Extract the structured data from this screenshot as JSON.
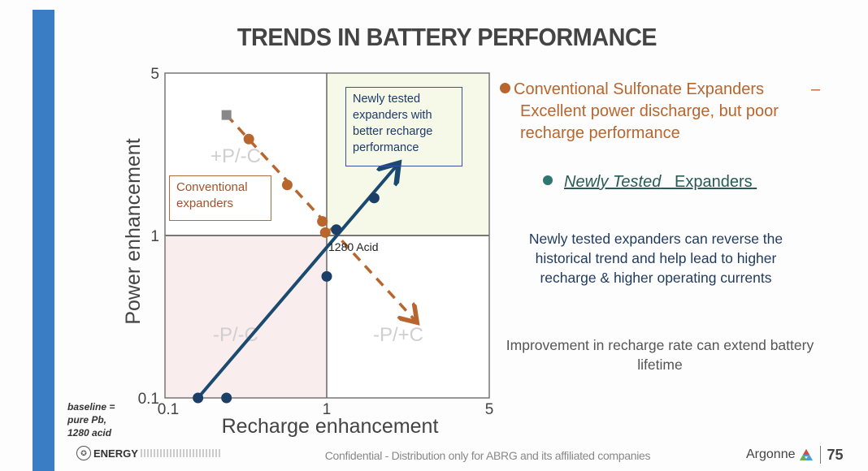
{
  "slide": {
    "title": "TRENDS IN BATTERY PERFORMANCE",
    "accent_color": "#3a7dc4",
    "footer": "Confidential  - Distribution only for ABRG and its affiliated companies",
    "logos": {
      "energy": "ENERGY",
      "argonne": "Argonne",
      "argonne_years": "75"
    }
  },
  "baseline_note": {
    "line1": "baseline =",
    "line2": "pure  Pb,",
    "line3": "1280 acid"
  },
  "legend_text": {
    "conventional": {
      "label": "Conventional Sulfonate Expanders",
      "dash": "–",
      "description": "Excellent power discharge, but poor recharge performance",
      "color": "#b8662e"
    },
    "newly_tested": {
      "label_italic": "Newly Tested",
      "label_rest": "Expanders",
      "color": "#2f7570"
    },
    "desc1": "Newly tested expanders can reverse the historical trend and help lead to higher recharge & higher operating currents",
    "desc2": "Improvement in recharge rate can extend battery lifetime"
  },
  "chart_data": {
    "type": "scatter",
    "title": "",
    "xlabel": "Recharge enhancement",
    "ylabel": "Power enhancement",
    "xscale": "log",
    "yscale": "log",
    "xlim": [
      0.1,
      5
    ],
    "ylim": [
      0.1,
      5
    ],
    "xticks": [
      "0.1",
      "1",
      "5"
    ],
    "yticks": [
      "0.1",
      "1",
      "5"
    ],
    "grid": false,
    "reference_lines": {
      "x": 1,
      "y": 1
    },
    "quadrants": [
      {
        "label": "+P/-C",
        "position": "top-left",
        "fill": "#ffffff"
      },
      {
        "label": "",
        "position": "top-right",
        "fill": "#f6f9e8"
      },
      {
        "label": "-P/-C",
        "position": "bottom-left",
        "fill": "#f9eded"
      },
      {
        "label": "-P/+C",
        "position": "bottom-right",
        "fill": "#ffffff"
      }
    ],
    "annotations": [
      {
        "text": "Newly tested expanders with better recharge performance",
        "type": "box"
      },
      {
        "text": "Conventional expanders",
        "type": "box"
      },
      {
        "text": "1280 Acid",
        "x": 1,
        "y": 1
      }
    ],
    "series": [
      {
        "name": "Conventional expanders",
        "color": "#b8662e",
        "marker": "circle",
        "points": [
          {
            "x": 0.33,
            "y": 2.6
          },
          {
            "x": 0.57,
            "y": 1.65
          },
          {
            "x": 0.94,
            "y": 1.15
          },
          {
            "x": 0.98,
            "y": 1.03
          }
        ]
      },
      {
        "name": "Conventional (gray marker)",
        "color": "#888888",
        "marker": "square",
        "points": [
          {
            "x": 0.24,
            "y": 3.3
          }
        ]
      },
      {
        "name": "Newly tested expanders",
        "color": "#1b3f66",
        "marker": "circle",
        "points": [
          {
            "x": 1.1,
            "y": 1.06
          },
          {
            "x": 1.6,
            "y": 1.45
          },
          {
            "x": 1.0,
            "y": 0.56
          },
          {
            "x": 0.16,
            "y": 0.1
          },
          {
            "x": 0.24,
            "y": 0.1
          }
        ]
      }
    ],
    "trend_arrows": [
      {
        "name": "conventional-trend",
        "style": "dashed",
        "color": "#b8662e",
        "from": {
          "x": 0.24,
          "y": 3.3
        },
        "to": {
          "x": 2.4,
          "y": 0.3
        }
      },
      {
        "name": "new-trend",
        "style": "solid",
        "color": "#1b4a70",
        "from": {
          "x": 0.16,
          "y": 0.1
        },
        "to": {
          "x": 2.0,
          "y": 2.0
        }
      }
    ]
  }
}
